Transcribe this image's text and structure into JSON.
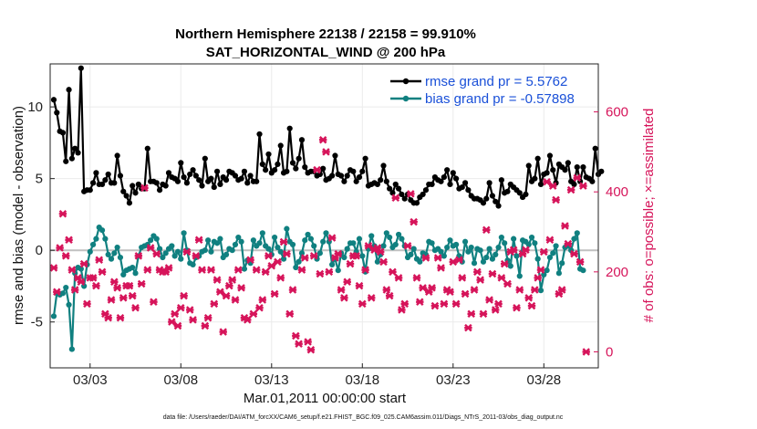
{
  "chart_data": {
    "type": "line",
    "title_line1": "Northern Hemisphere 22138 / 22158 = 99.910%",
    "title_line2": "SAT_HORIZONTAL_WIND @ 200 hPa",
    "xlabel": "Mar.01,2011 00:00:00 start",
    "ylabel_left": "rmse and bias (model - observation)",
    "ylabel_right": "# of obs: o=possible; ×=assimilated",
    "footnote": "data file: /Users/raeder/DAI/ATM_forcXX/CAM6_setup/f.e21.FHIST_BGC.f09_025.CAM6assim.011/Diags_NTrS_2011-03/obs_diag_output.nc",
    "xlim": [
      0.8,
      31.0
    ],
    "ylim_left": [
      -8.2,
      13
    ],
    "ylim_right": [
      -40,
      720
    ],
    "x_ticks": [
      3,
      8,
      13,
      18,
      23,
      28
    ],
    "x_tick_labels": [
      "03/03",
      "03/08",
      "03/13",
      "03/18",
      "03/23",
      "03/28"
    ],
    "y_ticks_left": [
      -5,
      0,
      5,
      10
    ],
    "y_ticks_right": [
      0,
      200,
      400,
      600
    ],
    "zero_line": 0,
    "legend": [
      {
        "label": "rmse grand pr = 5.5762",
        "color": "#000000"
      },
      {
        "label": "bias grand pr = -0.57898",
        "color": "#108080"
      }
    ],
    "series": [
      {
        "name": "rmse",
        "color": "#000000",
        "marker": "circle",
        "values": [
          10.5,
          9.6,
          8.3,
          8.2,
          6.2,
          11.2,
          6.4,
          7.1,
          6.8,
          12.7,
          4.1,
          4.2,
          4.2,
          4.7,
          5.4,
          4.6,
          4.6,
          4.9,
          5.3,
          4.7,
          4.7,
          6.6,
          5.2,
          4.1,
          3.8,
          3.3,
          4.5,
          4.0,
          4.6,
          4.3,
          4.3,
          7.1,
          4.8,
          4.8,
          4.7,
          4.2,
          4.6,
          4.5,
          5.4,
          5.1,
          5.0,
          4.8,
          6.1,
          5.1,
          4.7,
          5.3,
          5.6,
          5.2,
          4.9,
          4.5,
          6.4,
          4.8,
          5.0,
          4.4,
          5.5,
          4.6,
          5.1,
          4.9,
          5.5,
          5.4,
          5.2,
          4.9,
          5.0,
          5.5,
          4.7,
          5.2,
          4.8,
          4.8,
          8.1,
          6.0,
          5.6,
          6.7,
          5.4,
          5.6,
          6.0,
          7.3,
          5.4,
          5.5,
          8.5,
          6.1,
          5.7,
          6.4,
          7.7,
          5.8,
          5.4,
          5.5,
          5.5,
          5.2,
          5.3,
          5.7,
          4.9,
          5.0,
          5.2,
          6.6,
          5.3,
          5.2,
          4.8,
          5.2,
          5.6,
          5.5,
          4.8,
          5.1,
          5.5,
          6.4,
          4.5,
          4.6,
          4.7,
          4.6,
          4.9,
          5.9,
          4.8,
          4.3,
          4.0,
          4.6,
          4.3,
          3.9,
          3.6,
          3.9,
          3.5,
          3.3,
          3.3,
          3.7,
          3.9,
          4.2,
          4.6,
          4.6,
          5.1,
          4.9,
          4.8,
          5.1,
          5.6,
          4.6,
          5.4,
          5.0,
          4.3,
          4.4,
          4.7,
          4.2,
          3.8,
          3.6,
          3.6,
          3.5,
          3.3,
          3.6,
          4.7,
          3.8,
          3.4,
          3.1,
          4.9,
          4.0,
          4.1,
          4.6,
          4.4,
          4.2,
          4.0,
          3.7,
          3.9,
          5.9,
          4.8,
          5.0,
          6.4,
          4.6,
          5.3,
          5.4,
          6.6,
          5.6,
          4.7,
          6.0,
          5.8,
          5.6,
          6.1,
          4.8,
          4.6,
          5.8,
          4.8,
          5.8,
          5.1,
          5.0,
          4.8,
          7.1,
          5.3,
          5.5
        ],
        "x_start": 1.0,
        "x_step": 0.16666667
      },
      {
        "name": "bias",
        "color": "#108080",
        "marker": "circle",
        "values": [
          -4.6,
          -3.0,
          -3.1,
          -3.0,
          -2.6,
          -3.8,
          -6.9,
          -1.6,
          -1.2,
          -1.3,
          -2.5,
          -1.0,
          -0.1,
          0.4,
          0.8,
          1.6,
          1.4,
          0.8,
          -0.3,
          -0.6,
          -0.2,
          0.2,
          -0.5,
          -1.7,
          -1.4,
          -1.3,
          -1.2,
          -1.6,
          -0.4,
          0.2,
          0.3,
          0.4,
          0.7,
          1.0,
          0.8,
          0.1,
          -0.5,
          -0.2,
          0.1,
          0.3,
          -0.4,
          -0.1,
          -0.6,
          1.2,
          0.0,
          -0.9,
          -1.0,
          -0.5,
          -0.4,
          -0.1,
          0.0,
          0.7,
          -0.1,
          0.6,
          0.5,
          0.8,
          -0.5,
          -0.3,
          0.1,
          0.0,
          0.4,
          0.9,
          0.6,
          -1.3,
          -0.7,
          -0.9,
          0.7,
          0.3,
          0.5,
          1.2,
          0.3,
          0.1,
          -0.3,
          0.9,
          0.2,
          -0.1,
          -0.6,
          1.5,
          0.6,
          0.4,
          -1.2,
          -0.8,
          -0.2,
          0.7,
          1.1,
          0.8,
          0.3,
          -0.6,
          -0.2,
          0.6,
          1.2,
          0.6,
          -1.0,
          -0.6,
          -1.4,
          -0.2,
          -0.5,
          0.1,
          0.5,
          0.5,
          -0.1,
          0.8,
          -0.4,
          -1.5,
          0.1,
          1.0,
          0.3,
          -0.8,
          -0.3,
          0.3,
          1.2,
          0.9,
          0.2,
          0.4,
          1.1,
          0.8,
          0.3,
          -0.5,
          -0.3,
          0.1,
          -0.6,
          -0.8,
          -0.2,
          -0.3,
          0.6,
          0.5,
          0.0,
          0.1,
          -0.1,
          -0.4,
          0.2,
          0.7,
          0.3,
          0.4,
          -0.4,
          -0.8,
          0.6,
          -0.1,
          0.2,
          -0.9,
          0.1,
          0.0,
          -0.8,
          -0.5,
          0.1,
          -0.6,
          -0.3,
          0.2,
          0.9,
          0.5,
          -0.7,
          -1.1,
          0.8,
          -0.4,
          -1.8,
          0.7,
          0.6,
          0.4,
          0.9,
          0.5,
          -0.6,
          -2.8,
          -1.7,
          -1.4,
          -0.5,
          -0.2,
          0.3,
          -1.6,
          -0.9,
          0.2,
          0.3,
          0.0,
          0.8,
          1.2,
          -1.3,
          -1.4
        ],
        "x_start": 1.0,
        "x_step": 0.16666667
      },
      {
        "name": "obs_assimilated",
        "axis": "right",
        "color": "#d6145a",
        "marker": "x",
        "values": [
          210,
          150,
          260,
          345,
          240,
          280,
          205,
          155,
          185,
          175,
          220,
          120,
          185,
          185,
          165,
          230,
          200,
          95,
          85,
          130,
          175,
          160,
          85,
          135,
          165,
          165,
          140,
          110,
          240,
          170,
          410,
          205,
          260,
          125,
          245,
          205,
          200,
          200,
          210,
          75,
          95,
          65,
          110,
          140,
          250,
          105,
          80,
          240,
          280,
          205,
          65,
          85,
          205,
          120,
          180,
          150,
          50,
          140,
          165,
          180,
          130,
          205,
          160,
          85,
          80,
          230,
          95,
          205,
          110,
          130,
          200,
          240,
          215,
          145,
          225,
          185,
          275,
          245,
          95,
          155,
          40,
          20,
          205,
          235,
          25,
          5,
          240,
          455,
          195,
          530,
          500,
          200,
          285,
          235,
          245,
          155,
          135,
          175,
          220,
          240,
          240,
          165,
          120,
          205,
          265,
          135,
          255,
          260,
          250,
          225,
          155,
          140,
          200,
          385,
          185,
          105,
          120,
          265,
          395,
          325,
          185,
          125,
          160,
          235,
          150,
          160,
          115,
          235,
          210,
          120,
          155,
          150,
          225,
          120,
          230,
          185,
          145,
          60,
          95,
          155,
          200,
          180,
          95,
          305,
          130,
          195,
          105,
          120,
          185,
          220,
          170,
          250,
          255,
          110,
          155,
          245,
          255,
          135,
          115,
          155,
          185,
          205,
          250,
          425,
          280,
          415,
          380,
          145,
          155,
          315,
          270,
          405,
          245,
          435,
          225,
          415,
          0
        ],
        "x_start": 1.0,
        "x_step": 0.16666667
      }
    ]
  }
}
